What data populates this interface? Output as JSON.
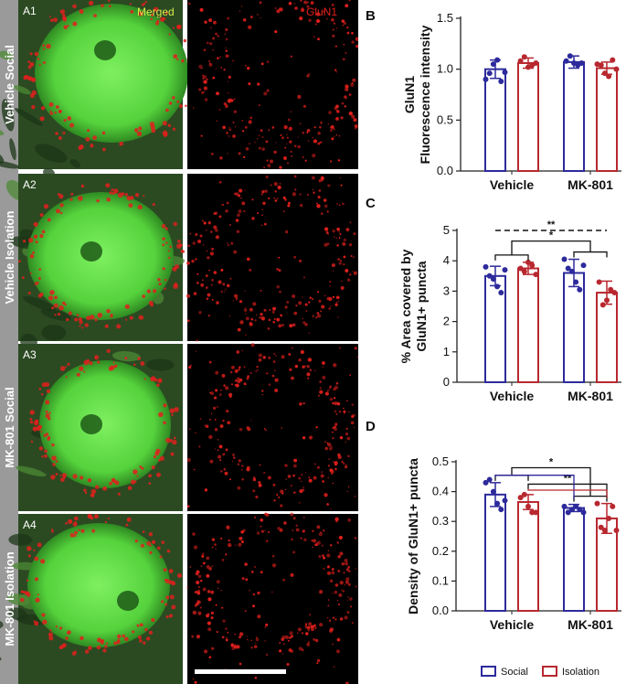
{
  "panel_a": {
    "rows": [
      {
        "tag": "A1",
        "label": "Vehicle Social"
      },
      {
        "tag": "A2",
        "label": "Vehicle Isolation"
      },
      {
        "tag": "A3",
        "label": "MK-801 Social"
      },
      {
        "tag": "A4",
        "label": "MK-801 Isolation"
      }
    ],
    "merged_title": "Merged",
    "glun1_title": "GluN1",
    "colors": {
      "green": "#5fd64a",
      "red": "#e0201c",
      "merged_title": "#d8e84a"
    }
  },
  "legend": {
    "items": [
      {
        "name": "Social",
        "color": "#2d2a9c"
      },
      {
        "name": "Isolation",
        "color": "#b8282f"
      }
    ]
  },
  "chart_data": [
    {
      "panel": "B",
      "type": "bar",
      "ylabel": "GluN1\nFluorescence intensity",
      "categories": [
        "Vehicle",
        "MK-801"
      ],
      "ylim": [
        0,
        1.5
      ],
      "yticks": [
        0.0,
        0.5,
        1.0,
        1.5
      ],
      "series": [
        {
          "name": "Social",
          "values": [
            1.0,
            1.07
          ],
          "errors": [
            0.09,
            0.06
          ],
          "points": [
            [
              0.9,
              0.96,
              1.05,
              1.09,
              0.88,
              0.97
            ],
            [
              1.08,
              1.13,
              1.06,
              1.04,
              1.06
            ]
          ]
        },
        {
          "name": "Isolation",
          "values": [
            1.06,
            1.01
          ],
          "errors": [
            0.05,
            0.06
          ],
          "points": [
            [
              1.08,
              1.12,
              1.02,
              1.04,
              1.06
            ],
            [
              1.05,
              1.04,
              0.96,
              0.93,
              1.09,
              1.0
            ]
          ]
        }
      ],
      "annotations": []
    },
    {
      "panel": "C",
      "type": "bar",
      "ylabel": "% Area covered by\nGluN1+ puncta",
      "categories": [
        "Vehicle",
        "MK-801"
      ],
      "ylim": [
        0,
        5
      ],
      "yticks": [
        0,
        1,
        2,
        3,
        4,
        5
      ],
      "series": [
        {
          "name": "Social",
          "values": [
            3.5,
            3.6
          ],
          "errors": [
            0.32,
            0.45
          ],
          "points": [
            [
              3.8,
              3.5,
              3.4,
              3.15,
              2.95,
              3.7
            ],
            [
              4.05,
              3.75,
              3.65,
              3.3,
              3.05,
              3.85
            ]
          ]
        },
        {
          "name": "Isolation",
          "values": [
            3.75,
            2.95
          ],
          "errors": [
            0.2,
            0.38
          ],
          "points": [
            [
              3.75,
              3.65,
              3.95,
              3.85,
              3.55
            ],
            [
              3.3,
              2.55,
              2.7,
              3.05,
              2.95
            ]
          ]
        }
      ],
      "annotations": [
        {
          "text": "**",
          "style": "dashed",
          "from": [
            0,
            0
          ],
          "to": [
            1,
            1
          ],
          "y": 5.0
        },
        {
          "text": "*",
          "style": "bracket",
          "from": "Vehicle",
          "to": "MK-801",
          "y": 4.65
        }
      ]
    },
    {
      "panel": "D",
      "type": "bar",
      "ylabel": "Density of GluN1+ puncta",
      "categories": [
        "Vehicle",
        "MK-801"
      ],
      "ylim": [
        0,
        0.5
      ],
      "yticks": [
        0.0,
        0.1,
        0.2,
        0.3,
        0.4,
        0.5
      ],
      "series": [
        {
          "name": "Social",
          "values": [
            0.39,
            0.345
          ],
          "errors": [
            0.04,
            0.012
          ],
          "points": [
            [
              0.43,
              0.44,
              0.4,
              0.36,
              0.34,
              0.37
            ],
            [
              0.35,
              0.33,
              0.34,
              0.35,
              0.34,
              0.33
            ]
          ]
        },
        {
          "name": "Isolation",
          "values": [
            0.365,
            0.31
          ],
          "errors": [
            0.025,
            0.05
          ],
          "points": [
            [
              0.38,
              0.39,
              0.35,
              0.33,
              0.33
            ],
            [
              0.36,
              0.28,
              0.27,
              0.31,
              0.35,
              0.27
            ]
          ]
        }
      ],
      "annotations": [
        {
          "text": "*",
          "style": "bracket",
          "from": "Vehicle",
          "to": "MK-801",
          "y": 0.48
        },
        {
          "text": "**",
          "style": "bracket",
          "from": [
            0,
            1
          ],
          "to": [
            1,
            1
          ],
          "y": 0.425
        },
        {
          "text": "",
          "style": "bracket",
          "color": "#2d2a9c",
          "from": [
            0,
            0
          ],
          "to": [
            1,
            0
          ],
          "y": 0.455
        },
        {
          "text": "",
          "style": "bracket",
          "color": "#b8282f",
          "from": [
            0,
            1
          ],
          "to": [
            1,
            1
          ],
          "y": 0.405
        }
      ]
    }
  ]
}
